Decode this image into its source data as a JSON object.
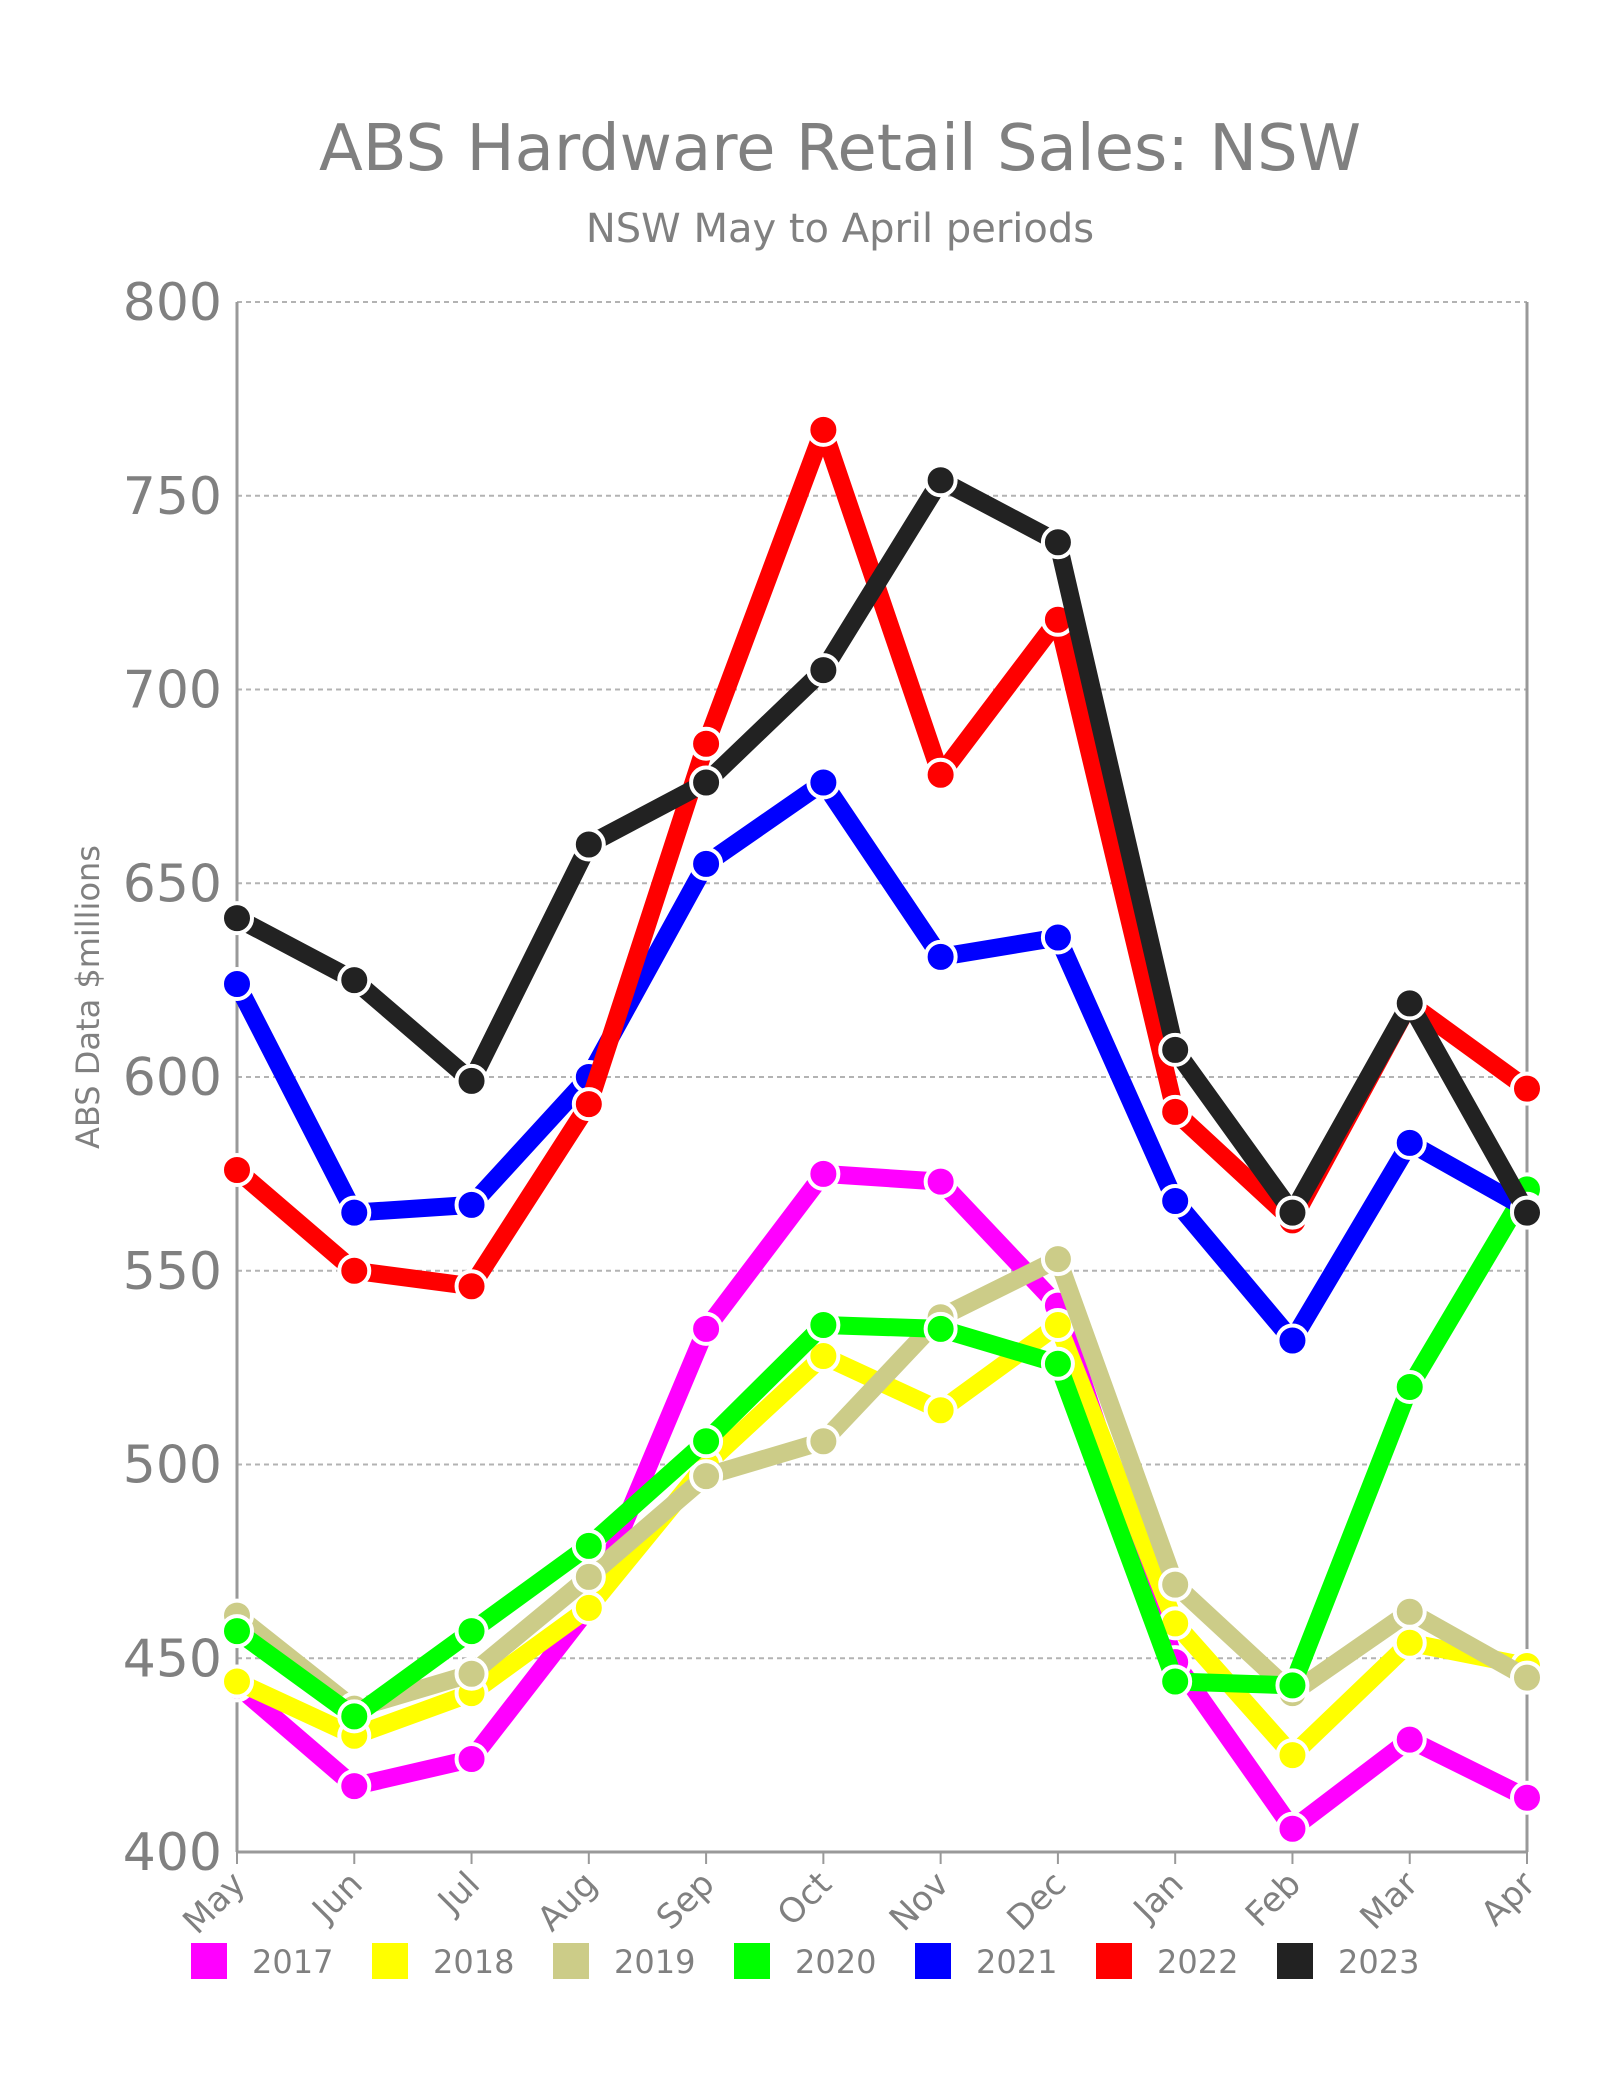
{
  "chart_data": {
    "type": "line",
    "title": "ABS Hardware Retail Sales: NSW",
    "subtitle": "NSW May to April periods",
    "xlabel": "",
    "ylabel": "ABS Data $millions",
    "ylim": [
      400,
      800
    ],
    "yticks": [
      400,
      450,
      500,
      550,
      600,
      650,
      700,
      750,
      800
    ],
    "grid": true,
    "legend": "bottom",
    "categories": [
      "May",
      "Jun",
      "Jul",
      "Aug",
      "Sep",
      "Oct",
      "Nov",
      "Dec",
      "Jan",
      "Feb",
      "Mar",
      "Apr"
    ],
    "series": [
      {
        "name": "2017",
        "color": "#ff00ff",
        "values": [
          443,
          417,
          424,
          463,
          535,
          575,
          573,
          541,
          449,
          406,
          429,
          414
        ]
      },
      {
        "name": "2018",
        "color": "#ffff00",
        "values": [
          444,
          430,
          441,
          463,
          500,
          528,
          514,
          536,
          459,
          425,
          454,
          448
        ]
      },
      {
        "name": "2019",
        "color": "#cccc88",
        "values": [
          461,
          437,
          446,
          471,
          497,
          506,
          538,
          553,
          469,
          441,
          462,
          445
        ]
      },
      {
        "name": "2020",
        "color": "#00ff00",
        "values": [
          457,
          435,
          457,
          479,
          506,
          536,
          535,
          526,
          444,
          443,
          520,
          571
        ]
      },
      {
        "name": "2021",
        "color": "#0000ff",
        "values": [
          624,
          565,
          567,
          600,
          655,
          676,
          631,
          636,
          568,
          532,
          583,
          566
        ]
      },
      {
        "name": "2022",
        "color": "#ff0000",
        "values": [
          576,
          550,
          546,
          593,
          686,
          767,
          678,
          718,
          591,
          563,
          619,
          597
        ]
      },
      {
        "name": "2023",
        "color": "#222222",
        "values": [
          641,
          625,
          599,
          660,
          676,
          705,
          754,
          738,
          607,
          565,
          619,
          565
        ]
      }
    ]
  }
}
